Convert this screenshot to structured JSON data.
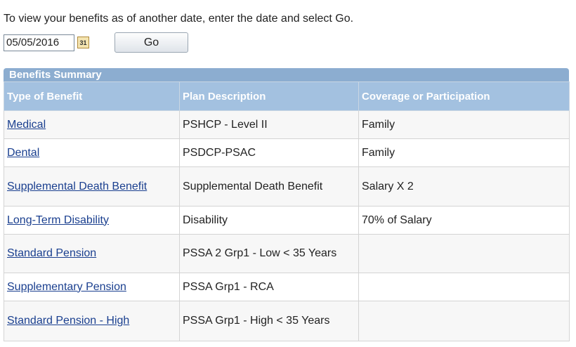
{
  "instruction": "To view your benefits as of another date, enter the date and select Go.",
  "date_value": "05/05/2016",
  "calendar_icon": "31",
  "go_button": "Go",
  "table": {
    "title": "Benefits Summary",
    "headers": [
      "Type of Benefit",
      "Plan Description",
      "Coverage or Participation"
    ],
    "rows": [
      [
        "Medical",
        "PSHCP - Level II",
        "Family"
      ],
      [
        "Dental",
        "PSDCP-PSAC",
        "Family"
      ],
      [
        "Supplemental Death Benefit",
        "Supplemental Death Benefit",
        "Salary X 2"
      ],
      [
        "Long-Term Disability",
        "Disability",
        "70% of Salary"
      ],
      [
        "Standard Pension",
        "PSSA 2 Grp1 - Low < 35 Years"
      ],
      [
        "Supplementary Pension",
        "PSSA Grp1 - RCA"
      ],
      [
        "Standard Pension - High",
        "PSSA Grp1 - High < 35 Years"
      ]
    ]
  }
}
